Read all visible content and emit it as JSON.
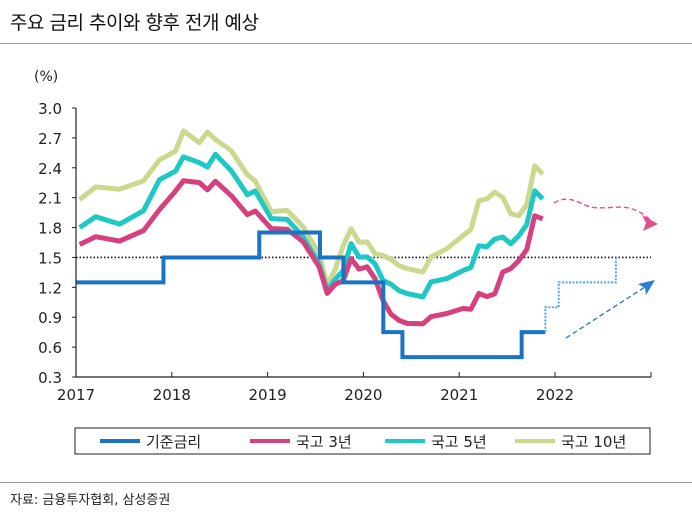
{
  "title": "주요 금리 추이와 향후 전개 예상",
  "source": "자료: 금융투자협회, 삼성증권",
  "chart_data": {
    "type": "line",
    "title": "",
    "ylabel": "(%)",
    "xlabel": "",
    "ylim": [
      0.3,
      3.0
    ],
    "xlim": [
      "2017-01",
      "2023-01"
    ],
    "y_ticks": [
      "3.0",
      "2.7",
      "2.4",
      "2.1",
      "1.8",
      "1.5",
      "1.2",
      "0.9",
      "0.6",
      "0.3"
    ],
    "x_ticks": [
      "2017",
      "2018",
      "2019",
      "2020",
      "2021",
      "2022"
    ],
    "grid": false,
    "reference_line": 1.5,
    "legend_position": "bottom",
    "series": [
      {
        "name": "기준금리",
        "color": "#1a73c4",
        "step": true,
        "x": [
          "2017-01-01",
          "2017-11-30",
          "2018-11-30",
          "2019-07-18",
          "2019-10-16",
          "2020-03-16",
          "2020-05-28",
          "2021-08-26",
          "2021-11-25"
        ],
        "values": [
          1.25,
          1.5,
          1.75,
          1.5,
          1.25,
          0.75,
          0.5,
          0.75,
          0.75
        ]
      },
      {
        "name": "국고 3년",
        "color": "#d6407f",
        "x": [
          "2017-01",
          "2017-03",
          "2017-06",
          "2017-09",
          "2017-11",
          "2018-01",
          "2018-02",
          "2018-04",
          "2018-05",
          "2018-06",
          "2018-08",
          "2018-10",
          "2018-11",
          "2019-01",
          "2019-03",
          "2019-05",
          "2019-07",
          "2019-08",
          "2019-09",
          "2019-10",
          "2019-11",
          "2019-12",
          "2020-01",
          "2020-02",
          "2020-03",
          "2020-04",
          "2020-05",
          "2020-06",
          "2020-08",
          "2020-09",
          "2020-11",
          "2021-01",
          "2021-02",
          "2021-03",
          "2021-04",
          "2021-05",
          "2021-06",
          "2021-07",
          "2021-08",
          "2021-09",
          "2021-10",
          "2021-11"
        ],
        "values": [
          1.63,
          1.7,
          1.68,
          1.75,
          2.0,
          2.15,
          2.28,
          2.25,
          2.17,
          2.28,
          2.1,
          1.95,
          1.95,
          1.8,
          1.78,
          1.65,
          1.42,
          1.12,
          1.25,
          1.25,
          1.5,
          1.38,
          1.4,
          1.3,
          1.05,
          0.95,
          0.85,
          0.85,
          0.83,
          0.9,
          0.95,
          0.97,
          1.0,
          1.12,
          1.12,
          1.13,
          1.35,
          1.4,
          1.45,
          1.6,
          1.9,
          1.9
        ]
      },
      {
        "name": "국고 5년",
        "color": "#1ec8c4",
        "x": [
          "2017-01",
          "2017-03",
          "2017-06",
          "2017-09",
          "2017-11",
          "2018-01",
          "2018-02",
          "2018-04",
          "2018-05",
          "2018-06",
          "2018-08",
          "2018-10",
          "2018-11",
          "2019-01",
          "2019-03",
          "2019-05",
          "2019-07",
          "2019-08",
          "2019-09",
          "2019-10",
          "2019-11",
          "2019-12",
          "2020-01",
          "2020-02",
          "2020-03",
          "2020-04",
          "2020-05",
          "2020-06",
          "2020-08",
          "2020-09",
          "2020-11",
          "2021-01",
          "2021-02",
          "2021-03",
          "2021-04",
          "2021-05",
          "2021-06",
          "2021-07",
          "2021-08",
          "2021-09",
          "2021-10",
          "2021-11"
        ],
        "values": [
          1.8,
          1.9,
          1.85,
          1.95,
          2.3,
          2.35,
          2.52,
          2.45,
          2.4,
          2.55,
          2.35,
          2.15,
          2.15,
          1.9,
          1.88,
          1.7,
          1.45,
          1.15,
          1.3,
          1.35,
          1.65,
          1.5,
          1.5,
          1.45,
          1.25,
          1.25,
          1.15,
          1.15,
          1.1,
          1.25,
          1.3,
          1.35,
          1.42,
          1.6,
          1.62,
          1.68,
          1.7,
          1.65,
          1.7,
          1.85,
          2.15,
          2.1
        ]
      },
      {
        "name": "국고 10년",
        "color": "#cdd88f",
        "x": [
          "2017-01",
          "2017-03",
          "2017-06",
          "2017-09",
          "2017-11",
          "2018-01",
          "2018-02",
          "2018-04",
          "2018-05",
          "2018-06",
          "2018-08",
          "2018-10",
          "2018-11",
          "2019-01",
          "2019-03",
          "2019-05",
          "2019-07",
          "2019-08",
          "2019-09",
          "2019-10",
          "2019-11",
          "2019-12",
          "2020-01",
          "2020-02",
          "2020-03",
          "2020-04",
          "2020-05",
          "2020-06",
          "2020-08",
          "2020-09",
          "2020-11",
          "2021-01",
          "2021-02",
          "2021-03",
          "2021-04",
          "2021-05",
          "2021-06",
          "2021-07",
          "2021-08",
          "2021-09",
          "2021-10",
          "2021-11"
        ],
        "values": [
          2.08,
          2.2,
          2.2,
          2.25,
          2.5,
          2.55,
          2.78,
          2.65,
          2.75,
          2.7,
          2.55,
          2.35,
          2.25,
          1.97,
          1.97,
          1.8,
          1.55,
          1.2,
          1.4,
          1.6,
          1.8,
          1.65,
          1.65,
          1.55,
          1.5,
          1.5,
          1.4,
          1.4,
          1.35,
          1.5,
          1.6,
          1.7,
          1.8,
          2.05,
          2.1,
          2.15,
          2.1,
          1.95,
          1.9,
          2.05,
          2.4,
          2.35
        ]
      }
    ],
    "forecast": {
      "base_rate_steps": {
        "color": "#4aa8ef",
        "x": [
          "2021-11-25",
          "2022-01-15",
          "2022-08-20",
          "2022-08-20"
        ],
        "values": [
          1.0,
          1.25,
          1.25,
          1.5
        ]
      },
      "bond_trend": {
        "color": "#e0508a",
        "direction": "sideways",
        "from": "2022-01",
        "to": "2023-01"
      },
      "base_rate_trend": {
        "color": "#2a80d0",
        "direction": "up",
        "from": "2022-01",
        "to": "2023-01"
      }
    }
  }
}
